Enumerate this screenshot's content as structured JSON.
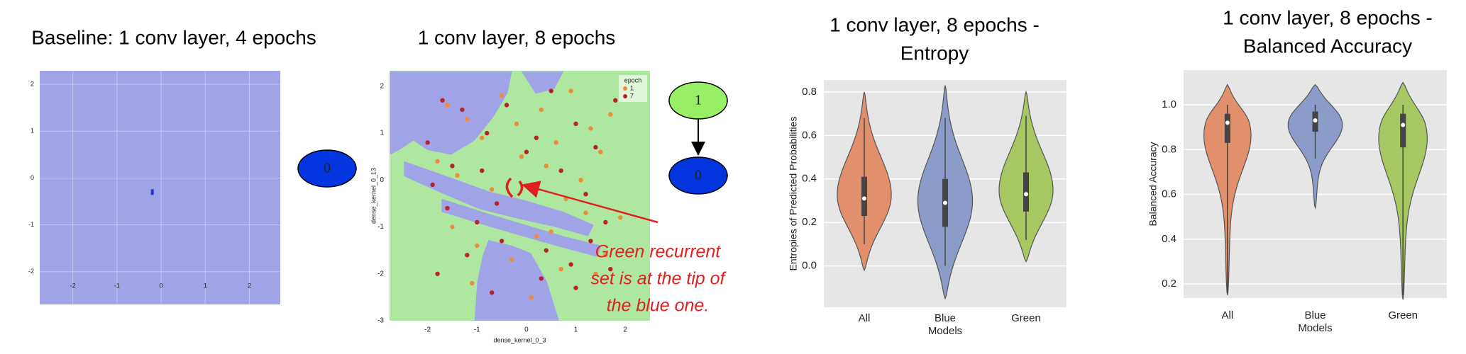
{
  "chart_data": [
    {
      "type": "scatter",
      "title": [
        "Baseline: 1 conv layer, 4 epochs"
      ],
      "background_color": "#a0a4e6",
      "grid": true,
      "xlim": [
        -2.75,
        2.7
      ],
      "ylim": [
        -2.7,
        2.29
      ],
      "xticks": [
        -2,
        -1,
        0,
        1,
        2
      ],
      "yticks": [
        -2,
        -1,
        0,
        1,
        2
      ],
      "series": [
        {
          "color": "#2233dd",
          "x": [
            -0.2
          ],
          "y": [
            -0.3
          ]
        }
      ]
    },
    {
      "type": "scatter",
      "title": [
        "1 conv layer, 8 epochs"
      ],
      "background_color": "#aee8a0",
      "grid": false,
      "xlabel": "dense_kernel_0_3",
      "ylabel": "dense_kernel_0_13",
      "xlim": [
        -2.77,
        2.5
      ],
      "ylim": [
        -3,
        2.33
      ],
      "xticks": [
        -2,
        -1,
        0,
        1,
        2
      ],
      "yticks": [
        -3,
        -2,
        -1,
        0,
        1,
        2
      ],
      "legend_title": "epoch",
      "annotation": [
        "Green recurrent",
        "set is at the tip of",
        "the blue one."
      ],
      "series": [
        {
          "name": "1",
          "color": "#f08a3c",
          "x": [
            -1.6,
            -1.2,
            -0.9,
            -0.5,
            -0.2,
            0.3,
            0.6,
            0.9,
            1.3,
            1.7,
            -1.8,
            -1.4,
            -0.7,
            -0.1,
            0.4,
            0.8,
            1.1,
            1.5,
            1.9,
            -1.5,
            -1.0,
            -0.3,
            0.2,
            0.7,
            1.2,
            1.6,
            -1.1,
            0.1,
            0.5,
            1.4
          ],
          "y": [
            1.6,
            1.3,
            0.9,
            1.8,
            1.2,
            1.5,
            0.8,
            1.9,
            1.1,
            1.4,
            0.4,
            0.1,
            -0.2,
            0.5,
            0.3,
            -0.4,
            0.0,
            0.6,
            -0.8,
            -1.0,
            -1.4,
            -1.7,
            -1.2,
            -1.9,
            -0.7,
            -1.6,
            -2.2,
            -2.5,
            -1.1,
            -2.0
          ]
        },
        {
          "name": "7",
          "color": "#b8232a",
          "x": [
            -2.0,
            -1.7,
            -1.3,
            -0.8,
            -0.4,
            0.0,
            0.5,
            1.0,
            1.4,
            1.8,
            -1.9,
            -1.5,
            -0.9,
            -0.6,
            0.2,
            0.7,
            1.2,
            1.6,
            -1.6,
            -1.2,
            -0.5,
            0.3,
            0.9,
            1.3,
            -1.8,
            -0.7,
            0.4,
            1.0,
            1.7,
            -1.0
          ],
          "y": [
            0.8,
            1.7,
            1.5,
            1.0,
            1.6,
            0.6,
            1.9,
            1.2,
            0.7,
            1.7,
            -0.1,
            0.3,
            0.2,
            -0.5,
            0.9,
            0.2,
            -0.3,
            -0.9,
            -0.6,
            -1.6,
            -1.3,
            -2.1,
            -1.8,
            -1.3,
            -2.0,
            -2.4,
            -1.5,
            -2.3,
            -1.9,
            -0.9
          ]
        }
      ]
    },
    {
      "type": "violin",
      "title": [
        "1 conv layer, 8 epochs -",
        "Entropy"
      ],
      "xlabel": "Models",
      "ylabel": "Entropies of Predicted Probabilities",
      "categories": [
        "All",
        "Blue",
        "Green"
      ],
      "colors": [
        "#e2906c",
        "#8d9bc8",
        "#a7c763"
      ],
      "ylim": [
        -0.19,
        0.855
      ],
      "yticks": [
        {
          "value": 0,
          "label": "0.0"
        },
        0.2,
        0.4,
        0.6,
        0.8
      ],
      "violins": [
        {
          "extent": [
            -0.02,
            0.8
          ],
          "whiskers": [
            0.1,
            0.68
          ],
          "box": [
            0.23,
            0.41
          ],
          "median": 0.31
        },
        {
          "extent": [
            -0.15,
            0.83
          ],
          "whiskers": [
            0.0,
            0.68
          ],
          "box": [
            0.18,
            0.4
          ],
          "median": 0.29
        },
        {
          "extent": [
            0.02,
            0.8
          ],
          "whiskers": [
            0.12,
            0.69
          ],
          "box": [
            0.25,
            0.43
          ],
          "median": 0.33
        }
      ]
    },
    {
      "type": "violin",
      "title": [
        "1 conv layer, 8 epochs -",
        "Balanced Accuracy"
      ],
      "xlabel": "Models",
      "ylabel": "Balanced Accuracy",
      "categories": [
        "All",
        "Blue",
        "Green"
      ],
      "colors": [
        "#e2906c",
        "#8d9bc8",
        "#a7c763"
      ],
      "ylim": [
        0.137,
        1.155
      ],
      "yticks": [
        0.2,
        0.4,
        0.6,
        0.8,
        {
          "value": 1,
          "label": "1.0"
        }
      ],
      "violins": [
        {
          "extent": [
            0.15,
            1.09
          ],
          "whiskers": [
            0.16,
            1.0
          ],
          "box": [
            0.83,
            0.96
          ],
          "median": 0.92
        },
        {
          "extent": [
            0.54,
            1.09
          ],
          "whiskers": [
            0.76,
            1.0
          ],
          "box": [
            0.88,
            0.97
          ],
          "median": 0.93
        },
        {
          "extent": [
            0.13,
            1.1
          ],
          "whiskers": [
            0.15,
            1.0
          ],
          "box": [
            0.81,
            0.96
          ],
          "median": 0.91
        }
      ]
    }
  ],
  "graphs": [
    {
      "nodes": [
        {
          "label": "0",
          "color": "#0436e0"
        }
      ]
    },
    {
      "nodes": [
        {
          "label": "1",
          "color": "#99f066"
        },
        {
          "label": "0",
          "color": "#0436e0"
        }
      ]
    }
  ]
}
